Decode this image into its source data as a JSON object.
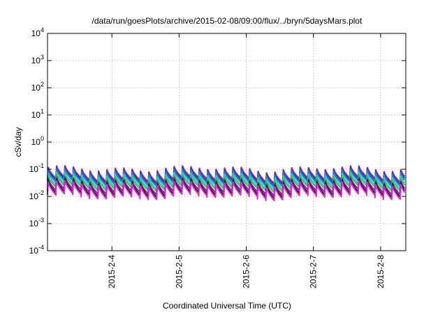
{
  "chart_data": {
    "type": "line",
    "title": "/data/run/goesPlots/archive/2015-02-08/09:00/flux/../bryn/5daysMars.plot",
    "xlabel": "Coordinated Universal Time (UTC)",
    "ylabel": "cSv/day",
    "yscale": "log",
    "ylim": [
      0.0001,
      10000
    ],
    "xlim": [
      "2015-02-03 01:00",
      "2015-02-08 09:00"
    ],
    "x_ticks": [
      {
        "label": "2015-2-4",
        "t": "2015-02-04 00:00"
      },
      {
        "label": "2015-2-5",
        "t": "2015-02-05 00:00"
      },
      {
        "label": "2015-2-6",
        "t": "2015-02-06 00:00"
      },
      {
        "label": "2015-2-7",
        "t": "2015-02-07 00:00"
      },
      {
        "label": "2015-2-8",
        "t": "2015-02-08 00:00"
      }
    ],
    "y_ticks": [
      {
        "base": "10",
        "exp": "-4",
        "value": 0.0001
      },
      {
        "base": "10",
        "exp": "-3",
        "value": 0.001
      },
      {
        "base": "10",
        "exp": "-2",
        "value": 0.01
      },
      {
        "base": "10",
        "exp": "-1",
        "value": 0.1
      },
      {
        "base": "10",
        "exp": "0",
        "value": 1
      },
      {
        "base": "10",
        "exp": "1",
        "value": 10
      },
      {
        "base": "10",
        "exp": "2",
        "value": 100
      },
      {
        "base": "10",
        "exp": "3",
        "value": 1000
      },
      {
        "base": "10",
        "exp": "4",
        "value": 10000
      }
    ],
    "grid": true,
    "cycle_hours": 3,
    "series": [
      {
        "color": "#e8172b",
        "peak": 0.105,
        "trough": 0.042
      },
      {
        "color": "#1f3fe0",
        "peak": 0.095,
        "trough": 0.036
      },
      {
        "color": "#1e7fd8",
        "peak": 0.08,
        "trough": 0.03
      },
      {
        "color": "#22d4c8",
        "peak": 0.062,
        "trough": 0.024
      },
      {
        "color": "#2ccf3a",
        "peak": 0.05,
        "trough": 0.02
      },
      {
        "color": "#7a1fa0",
        "peak": 0.04,
        "trough": 0.015
      },
      {
        "color": "#1a1a1a",
        "peak": 0.034,
        "trough": 0.012
      },
      {
        "color": "#f01fe0",
        "peak": 0.03,
        "trough": 0.01
      }
    ]
  }
}
